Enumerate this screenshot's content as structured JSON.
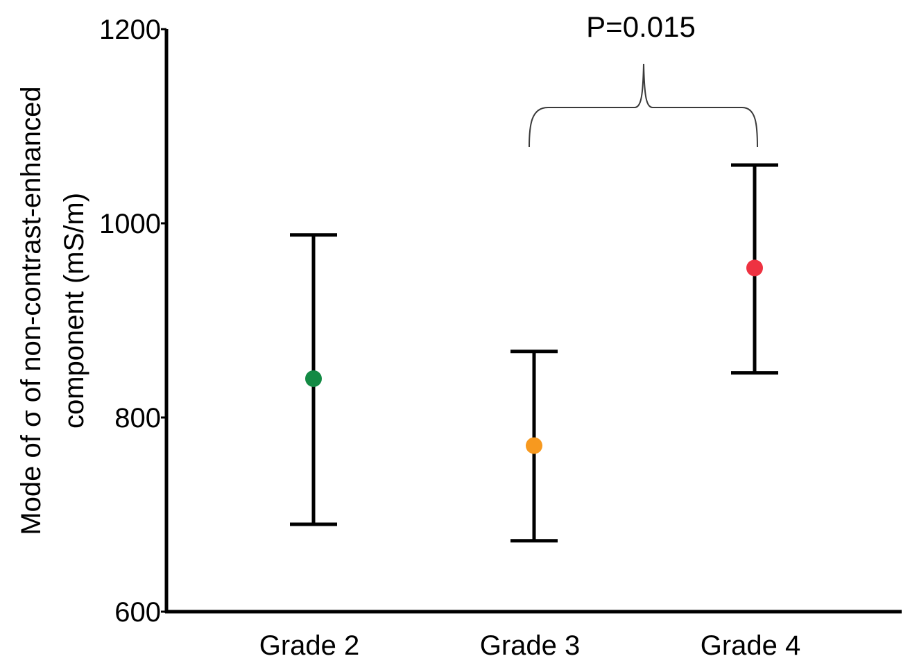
{
  "chart_data": {
    "type": "scatter",
    "ylabel_line1": "Mode of σ of non-contrast-enhanced",
    "ylabel_line2": "component (mS/m)",
    "ylim": [
      600,
      1200
    ],
    "yticks": [
      "600",
      "800",
      "1000",
      "1200"
    ],
    "categories": [
      "Grade 2",
      "Grade 3",
      "Grade 4"
    ],
    "points": [
      {
        "category": "Grade 2",
        "value": 840,
        "lower": 690,
        "upper": 988,
        "color": "#138a44"
      },
      {
        "category": "Grade 3",
        "value": 771,
        "lower": 673,
        "upper": 868,
        "color": "#f7991f"
      },
      {
        "category": "Grade 4",
        "value": 954,
        "lower": 846,
        "upper": 1060,
        "color": "#ee3241"
      }
    ],
    "annotation": {
      "text": "P=0.015",
      "from": "Grade 3",
      "to": "Grade 4"
    },
    "grid": false,
    "legend": "none"
  }
}
